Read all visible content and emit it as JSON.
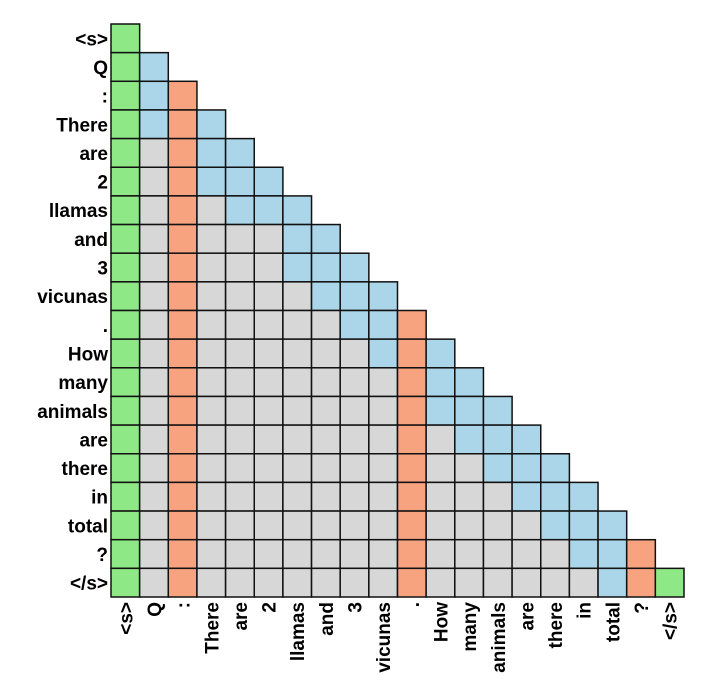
{
  "tokens": [
    "<s>",
    "Q",
    ":",
    "There",
    "are",
    "2",
    "llamas",
    "and",
    "3",
    "vicunas",
    ".",
    "How",
    "many",
    "animals",
    "are",
    "there",
    "in",
    "total",
    "?",
    "</s>"
  ],
  "colors": {
    "green": "#8ee886",
    "blue": "#abd5e8",
    "orange": "#f7a380",
    "gray": "#d7d7d7",
    "border": "#111111"
  },
  "cell_colors": [
    [
      "green"
    ],
    [
      "green",
      "blue"
    ],
    [
      "green",
      "blue",
      "orange"
    ],
    [
      "green",
      "blue",
      "orange",
      "blue"
    ],
    [
      "green",
      "gray",
      "orange",
      "blue",
      "blue"
    ],
    [
      "green",
      "gray",
      "orange",
      "blue",
      "blue",
      "blue"
    ],
    [
      "green",
      "gray",
      "orange",
      "gray",
      "blue",
      "blue",
      "blue"
    ],
    [
      "green",
      "gray",
      "orange",
      "gray",
      "gray",
      "gray",
      "blue",
      "blue"
    ],
    [
      "green",
      "gray",
      "orange",
      "gray",
      "gray",
      "gray",
      "blue",
      "blue",
      "blue"
    ],
    [
      "green",
      "gray",
      "orange",
      "gray",
      "gray",
      "gray",
      "gray",
      "blue",
      "blue",
      "blue"
    ],
    [
      "green",
      "gray",
      "orange",
      "gray",
      "gray",
      "gray",
      "gray",
      "gray",
      "blue",
      "blue",
      "orange"
    ],
    [
      "green",
      "gray",
      "orange",
      "gray",
      "gray",
      "gray",
      "gray",
      "gray",
      "gray",
      "blue",
      "orange",
      "blue"
    ],
    [
      "green",
      "gray",
      "orange",
      "gray",
      "gray",
      "gray",
      "gray",
      "gray",
      "gray",
      "gray",
      "orange",
      "blue",
      "blue"
    ],
    [
      "green",
      "gray",
      "orange",
      "gray",
      "gray",
      "gray",
      "gray",
      "gray",
      "gray",
      "gray",
      "orange",
      "blue",
      "blue",
      "blue"
    ],
    [
      "green",
      "gray",
      "orange",
      "gray",
      "gray",
      "gray",
      "gray",
      "gray",
      "gray",
      "gray",
      "orange",
      "gray",
      "blue",
      "blue",
      "blue"
    ],
    [
      "green",
      "gray",
      "orange",
      "gray",
      "gray",
      "gray",
      "gray",
      "gray",
      "gray",
      "gray",
      "orange",
      "gray",
      "gray",
      "blue",
      "blue",
      "blue"
    ],
    [
      "green",
      "gray",
      "orange",
      "gray",
      "gray",
      "gray",
      "gray",
      "gray",
      "gray",
      "gray",
      "orange",
      "gray",
      "gray",
      "gray",
      "blue",
      "blue",
      "blue"
    ],
    [
      "green",
      "gray",
      "orange",
      "gray",
      "gray",
      "gray",
      "gray",
      "gray",
      "gray",
      "gray",
      "orange",
      "gray",
      "gray",
      "gray",
      "gray",
      "blue",
      "blue",
      "blue"
    ],
    [
      "green",
      "gray",
      "orange",
      "gray",
      "gray",
      "gray",
      "gray",
      "gray",
      "gray",
      "gray",
      "orange",
      "gray",
      "gray",
      "gray",
      "gray",
      "gray",
      "blue",
      "blue",
      "orange"
    ],
    [
      "green",
      "gray",
      "orange",
      "gray",
      "gray",
      "gray",
      "gray",
      "gray",
      "gray",
      "gray",
      "orange",
      "gray",
      "gray",
      "gray",
      "gray",
      "gray",
      "gray",
      "blue",
      "orange",
      "green"
    ]
  ]
}
